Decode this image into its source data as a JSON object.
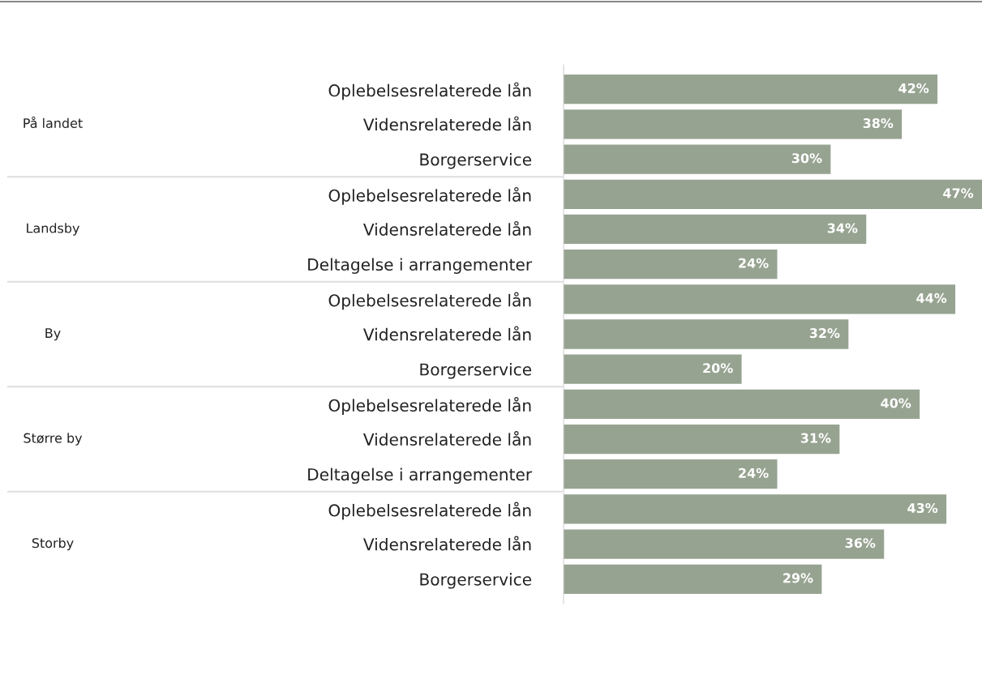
{
  "chart_data": {
    "type": "bar",
    "orientation": "horizontal",
    "categories": [
      "Oplebelsesrelaterede lån",
      "Vidensrelaterede lån",
      "Borgerservice",
      "Oplebelsesrelaterede lån",
      "Vidensrelaterede lån",
      "Deltagelse i arrangementer",
      "Oplebelsesrelaterede lån",
      "Vidensrelaterede lån",
      "Borgerservice",
      "Oplebelsesrelaterede lån",
      "Vidensrelaterede lån",
      "Deltagelse i arrangementer",
      "Oplebelsesrelaterede lån",
      "Vidensrelaterede lån",
      "Borgerservice"
    ],
    "values": [
      42,
      38,
      30,
      47,
      34,
      24,
      44,
      32,
      20,
      40,
      31,
      24,
      43,
      36,
      29
    ],
    "value_labels": [
      "42%",
      "38%",
      "30%",
      "47%",
      "34%",
      "24%",
      "44%",
      "32%",
      "20%",
      "40%",
      "31%",
      "24%",
      "43%",
      "36%",
      "29%"
    ],
    "color": "#97a391",
    "annotations": [
      "På landet",
      "Landsby",
      "By",
      "Større by",
      "Storby"
    ],
    "grid": false,
    "legend": false
  }
}
